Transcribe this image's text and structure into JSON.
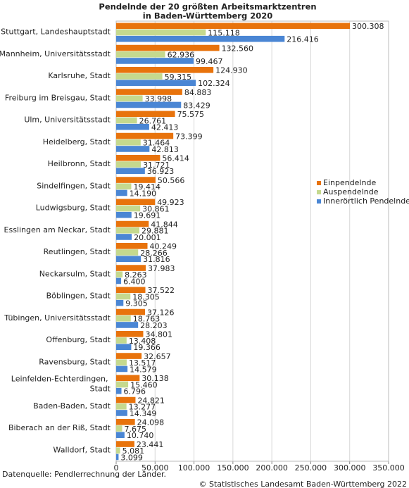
{
  "chart_data": {
    "type": "hbar",
    "title": [
      "Pendelnde der 20 größten Arbeitsmarktzentren",
      "in Baden-Württemberg 2020"
    ],
    "categories": [
      "Stuttgart, Landeshauptstadt",
      "Mannheim, Universitätsstadt",
      "Karlsruhe, Stadt",
      "Freiburg im Breisgau, Stadt",
      "Ulm, Universitätsstadt",
      "Heidelberg, Stadt",
      "Heilbronn, Stadt",
      "Sindelfingen, Stadt",
      "Ludwigsburg, Stadt",
      "Esslingen am Neckar, Stadt",
      "Reutlingen, Stadt",
      "Neckarsulm, Stadt",
      "Böblingen, Stadt",
      "Tübingen, Universitätsstadt",
      "Offenburg, Stadt",
      "Ravensburg, Stadt",
      "Leinfelden-Echterdingen, Stadt",
      "Baden-Baden, Stadt",
      "Biberach an der Riß, Stadt",
      "Walldorf, Stadt"
    ],
    "series": [
      {
        "name": "Einpendelnde",
        "color": "#e8730c",
        "values": [
          300308,
          132560,
          124930,
          84883,
          75575,
          73399,
          56414,
          50566,
          49923,
          41844,
          40249,
          37983,
          37522,
          37126,
          34801,
          32657,
          30138,
          24821,
          24098,
          23441
        ],
        "value_labels": [
          "300.308",
          "132.560",
          "124.930",
          "84.883",
          "75.575",
          "73.399",
          "56.414",
          "50.566",
          "49.923",
          "41.844",
          "40.249",
          "37.983",
          "37.522",
          "37.126",
          "34.801",
          "32.657",
          "30.138",
          "24.821",
          "24.098",
          "23.441"
        ]
      },
      {
        "name": "Auspendelnde",
        "color": "#c5d98e",
        "values": [
          115118,
          62936,
          59315,
          33998,
          26761,
          31464,
          31721,
          19414,
          30861,
          29881,
          28266,
          8263,
          18305,
          18763,
          13408,
          13517,
          15460,
          13277,
          7675,
          5081
        ],
        "value_labels": [
          "115.118",
          "62.936",
          "59.315",
          "33.998",
          "26.761",
          "31.464",
          "31.721",
          "19.414",
          "30.861",
          "29.881",
          "28.266",
          "8.263",
          "18.305",
          "18.763",
          "13.408",
          "13.517",
          "15.460",
          "13.277",
          "7.675",
          "5.081"
        ]
      },
      {
        "name": "Innerörtlich Pendelnde",
        "color": "#4a86d4",
        "values": [
          216416,
          99467,
          102324,
          83429,
          42413,
          42813,
          36923,
          14190,
          19691,
          20001,
          31816,
          6400,
          9305,
          28203,
          19366,
          14579,
          6796,
          14349,
          10740,
          3099
        ],
        "value_labels": [
          "216.416",
          "99.467",
          "102.324",
          "83.429",
          "42.413",
          "42.813",
          "36.923",
          "14.190",
          "19.691",
          "20.001",
          "31.816",
          "6.400",
          "9.305",
          "28.203",
          "19.366",
          "14.579",
          "6.796",
          "14.349",
          "10.740",
          "3.099"
        ]
      }
    ],
    "xlim": [
      0,
      350000
    ],
    "xticks": [
      0,
      {
        "value": 50000,
        "label": "50.000"
      },
      {
        "value": 100000,
        "label": "100.000"
      },
      {
        "value": 150000,
        "label": "150.000"
      },
      {
        "value": 200000,
        "label": "200.000"
      },
      {
        "value": 250000,
        "label": "250.000"
      },
      {
        "value": 300000,
        "label": "300.000"
      },
      {
        "value": 350000,
        "label": "350.000"
      }
    ],
    "grid": true,
    "legend": "right",
    "source": "Datenquelle: Pendlerrechnung der Länder.",
    "copyright": "© Statistisches Landesamt Baden-Württemberg 2022"
  }
}
